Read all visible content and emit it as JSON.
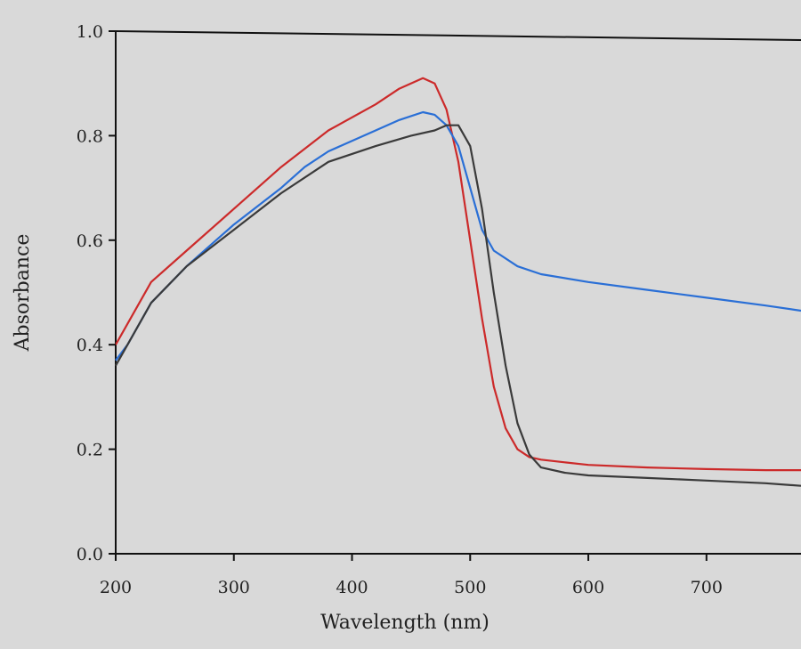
{
  "chart_data": {
    "type": "line",
    "xlabel": "Wavelength (nm)",
    "ylabel": "Absorbance",
    "xlim": [
      200,
      780
    ],
    "ylim": [
      0.0,
      1.0
    ],
    "xticks": [
      200,
      300,
      400,
      500,
      600,
      700
    ],
    "xtick_labels": [
      "200",
      "300",
      "400",
      "500",
      "600",
      "700"
    ],
    "yticks": [
      0.0,
      0.2,
      0.4,
      0.6,
      0.8,
      1.0
    ],
    "ytick_labels": [
      "0.0",
      "0.2",
      "0.4",
      "0.6",
      "0.8",
      "1.0"
    ],
    "grid": false,
    "colors": {
      "background": "#d9d9d9",
      "axis": "#111111"
    },
    "series": [
      {
        "color": "#cc2a2a",
        "x": [
          200,
          210,
          230,
          260,
          300,
          340,
          380,
          420,
          440,
          460,
          470,
          480,
          490,
          500,
          510,
          520,
          530,
          540,
          550,
          560,
          580,
          600,
          650,
          700,
          750,
          780
        ],
        "y": [
          0.4,
          0.44,
          0.52,
          0.58,
          0.66,
          0.74,
          0.81,
          0.86,
          0.89,
          0.91,
          0.9,
          0.85,
          0.75,
          0.6,
          0.45,
          0.32,
          0.24,
          0.2,
          0.185,
          0.18,
          0.175,
          0.17,
          0.165,
          0.162,
          0.16,
          0.16
        ]
      },
      {
        "color": "#2a6fd6",
        "x": [
          200,
          210,
          230,
          260,
          300,
          340,
          360,
          380,
          420,
          440,
          460,
          470,
          480,
          490,
          500,
          510,
          520,
          540,
          560,
          600,
          650,
          700,
          750,
          780
        ],
        "y": [
          0.37,
          0.4,
          0.48,
          0.55,
          0.63,
          0.7,
          0.74,
          0.77,
          0.81,
          0.83,
          0.845,
          0.84,
          0.82,
          0.78,
          0.7,
          0.62,
          0.58,
          0.55,
          0.535,
          0.52,
          0.505,
          0.49,
          0.475,
          0.465
        ]
      },
      {
        "color": "#3a3a3a",
        "x": [
          200,
          210,
          230,
          260,
          300,
          340,
          380,
          420,
          450,
          470,
          480,
          490,
          500,
          510,
          520,
          530,
          540,
          550,
          560,
          580,
          600,
          650,
          700,
          750,
          780
        ],
        "y": [
          0.36,
          0.4,
          0.48,
          0.55,
          0.62,
          0.69,
          0.75,
          0.78,
          0.8,
          0.81,
          0.82,
          0.82,
          0.78,
          0.66,
          0.5,
          0.36,
          0.25,
          0.19,
          0.165,
          0.155,
          0.15,
          0.145,
          0.14,
          0.135,
          0.13
        ]
      }
    ]
  }
}
